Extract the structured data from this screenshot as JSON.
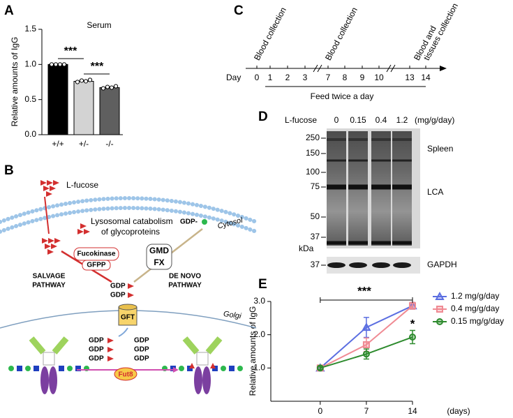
{
  "chart_data": [
    {
      "type": "bar",
      "panel": "A",
      "title": "Serum",
      "ylabel": "Relative amounts of IgG",
      "categories": [
        "+/+",
        "+/-",
        "-/-"
      ],
      "values": [
        1.0,
        0.76,
        0.67
      ],
      "colors": [
        "#000000",
        "#d3d3d3",
        "#5f5f5f"
      ],
      "points": [
        [
          1.0,
          1.0,
          1.0,
          1.0
        ],
        [
          0.75,
          0.77,
          0.76,
          0.78
        ],
        [
          0.66,
          0.68,
          0.67,
          0.69
        ]
      ],
      "ylim": [
        0,
        1.5
      ],
      "yticks": [
        {
          "value": 0,
          "label": "0.0"
        },
        0.5,
        {
          "value": 1,
          "label": "1.0"
        },
        1.5
      ],
      "annotations": [
        "***",
        "***"
      ]
    },
    {
      "type": "line",
      "panel": "E",
      "ylabel": "Relative amounts of IgG",
      "xlabel": "(days)",
      "x": [
        0,
        7,
        14
      ],
      "series": [
        {
          "name": "1.2 mg/g/day",
          "color": "#5b6ee1",
          "marker": "triangle",
          "values": [
            1.0,
            2.22,
            2.87
          ],
          "errors": [
            0.05,
            0.3,
            0.1
          ]
        },
        {
          "name": "0.4 mg/g/day",
          "color": "#f08a93",
          "marker": "square",
          "values": [
            1.0,
            1.7,
            2.87
          ],
          "errors": [
            0.05,
            0.2,
            0.1
          ]
        },
        {
          "name": "0.15 mg/g/day",
          "color": "#2e8b2e",
          "marker": "circle",
          "values": [
            1.0,
            1.42,
            1.93
          ],
          "errors": [
            0.05,
            0.15,
            0.2
          ]
        }
      ],
      "xlim": [
        -7.5,
        14
      ],
      "xticks": [
        0,
        7,
        14
      ],
      "ylim": [
        0,
        3
      ],
      "yticks": [
        {
          "value": 1,
          "label": "1.0"
        },
        {
          "value": 2,
          "label": "2.0"
        },
        {
          "value": 3,
          "label": "3.0"
        }
      ],
      "annotations": [
        "***",
        "*"
      ]
    }
  ],
  "pathway_diagram": {
    "panel": "B",
    "fucose": "L-fucose",
    "lysosomal": [
      "Lysosomal catabolism",
      "of glycoproteins"
    ],
    "cytosol": "Cytosol",
    "fucokinase": "Fucokinase",
    "gfpp": "GFPP",
    "gmd": "GMD",
    "fx": "FX",
    "gdp_input": "GDP-",
    "salvage": [
      "SALVAGE",
      "PATHWAY"
    ],
    "de_novo": [
      "DE NOVO",
      "PATHWAY"
    ],
    "gdp_fucose": [
      "GDP",
      "GDP"
    ],
    "gft": "GFT",
    "golgi": "Golgi",
    "gdp_golgi_left": [
      "GDP",
      "GDP",
      "GDP"
    ],
    "gdp_golgi_right": [
      "GDP",
      "GDP",
      "GDP"
    ],
    "fut8": "Fut8"
  },
  "timeline": {
    "panel": "C",
    "day_label": "Day",
    "days": [
      0,
      1,
      2,
      3,
      7,
      8,
      9,
      10,
      13,
      14
    ],
    "events": [
      "Blood collection",
      "Blood collection"
    ],
    "last_event": [
      "Blood and",
      "tissues collection"
    ],
    "feed": "Feed twice a day"
  },
  "blot": {
    "panel": "D",
    "treatment": "L-fucose",
    "doses": [
      "0",
      "0.15",
      "0.4",
      "1.2"
    ],
    "dose_unit": "(mg/g/day)",
    "markers": [
      250,
      150,
      100,
      75,
      50,
      37
    ],
    "kda": "kDa",
    "tissue": "Spleen",
    "stain": "LCA",
    "loading_marker": 37,
    "loading": "GAPDH"
  }
}
